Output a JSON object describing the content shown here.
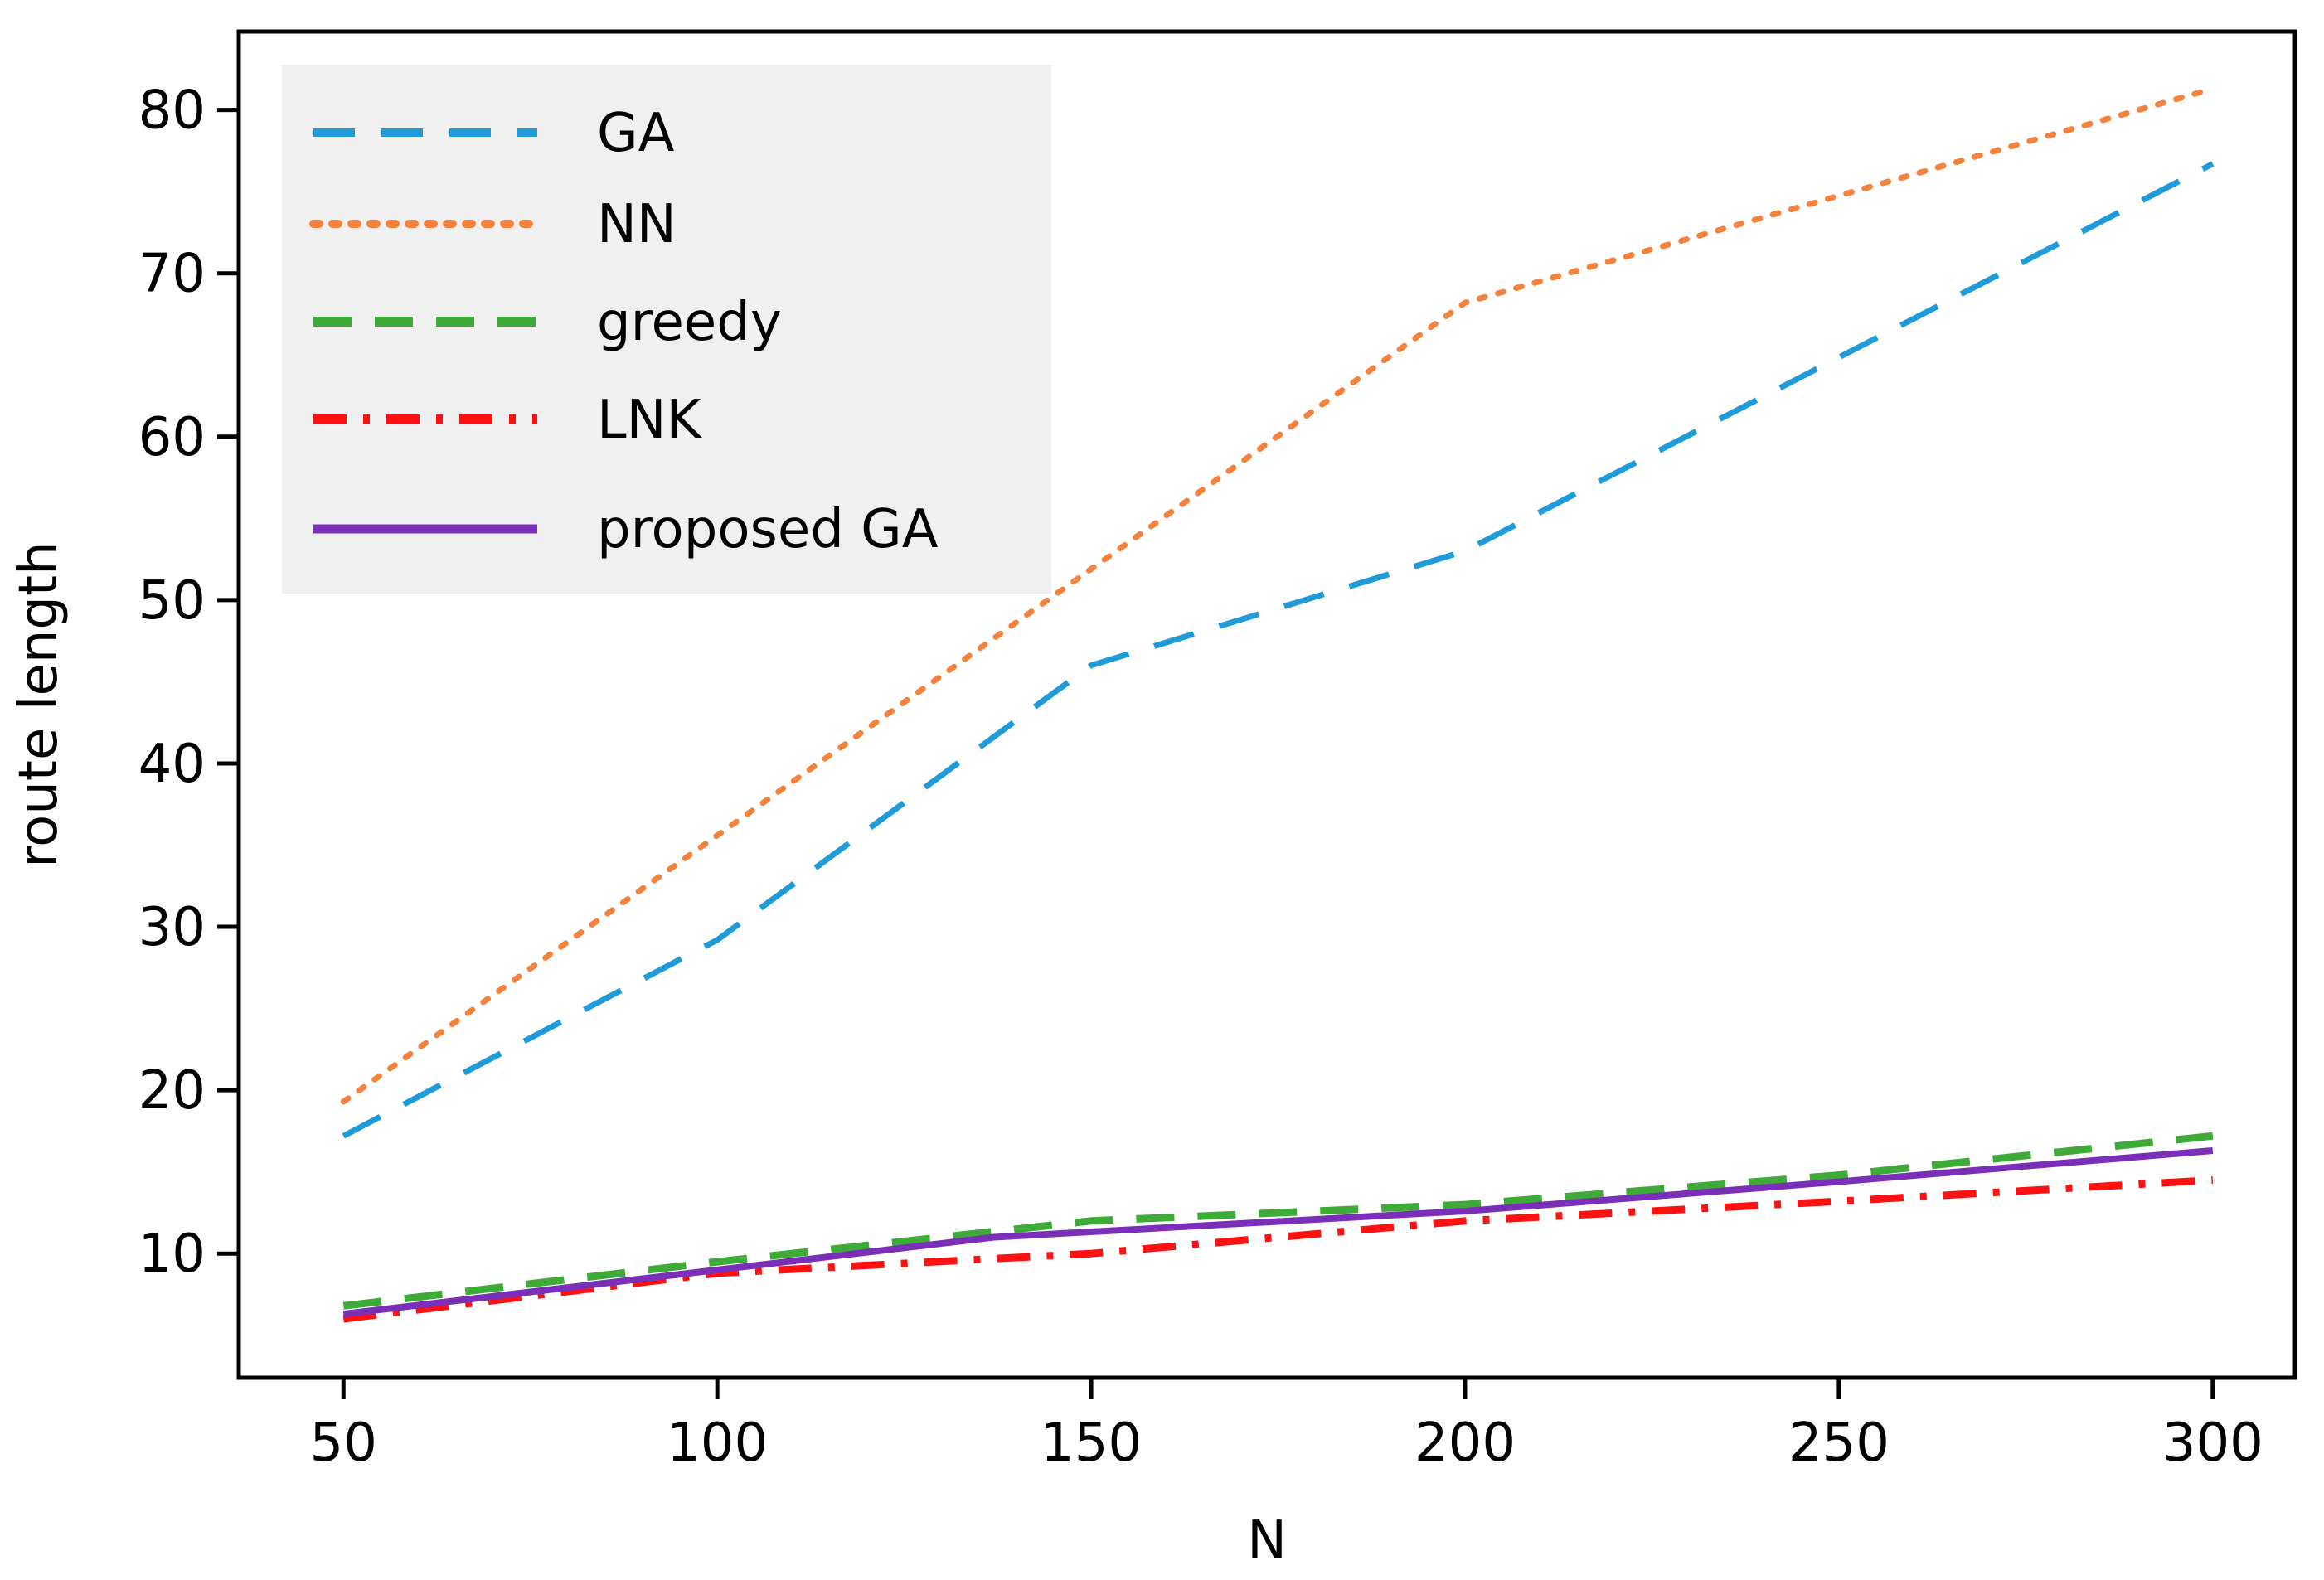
{
  "chart_data": {
    "type": "line",
    "title": "",
    "xlabel": "N",
    "ylabel": "route length",
    "xlim": [
      36,
      311
    ],
    "ylim": [
      2.4,
      84.8
    ],
    "xticks": [
      50,
      100,
      150,
      200,
      250,
      300
    ],
    "yticks": [
      10,
      20,
      30,
      40,
      50,
      60,
      70,
      80
    ],
    "legend_position": "top-left",
    "series": [
      {
        "name": "GA",
        "color": "#1f9bd9",
        "style": "dashed",
        "x": [
          50,
          100,
          150,
          200,
          300
        ],
        "y": [
          17.2,
          29.2,
          46.0,
          53.0,
          76.7
        ]
      },
      {
        "name": "NN",
        "color": "#f5823c",
        "style": "dotted",
        "x": [
          50,
          200,
          300
        ],
        "y": [
          19.3,
          68.2,
          81.3
        ]
      },
      {
        "name": "greedy",
        "color": "#3eaa38",
        "style": "long-dashed",
        "x": [
          50,
          100,
          150,
          200,
          250,
          300
        ],
        "y": [
          6.8,
          9.5,
          12.0,
          13.0,
          14.8,
          17.2
        ]
      },
      {
        "name": "LNK",
        "color": "#ff1111",
        "style": "dash-dot",
        "x": [
          50,
          100,
          150,
          200,
          250,
          300
        ],
        "y": [
          6.0,
          8.8,
          10.0,
          12.0,
          13.2,
          14.5
        ]
      },
      {
        "name": "proposed GA",
        "color": "#7a2fb8",
        "style": "solid",
        "x": [
          50,
          100,
          137,
          200,
          250,
          300
        ],
        "y": [
          6.3,
          9.0,
          11.0,
          12.6,
          14.4,
          16.3
        ]
      }
    ]
  }
}
